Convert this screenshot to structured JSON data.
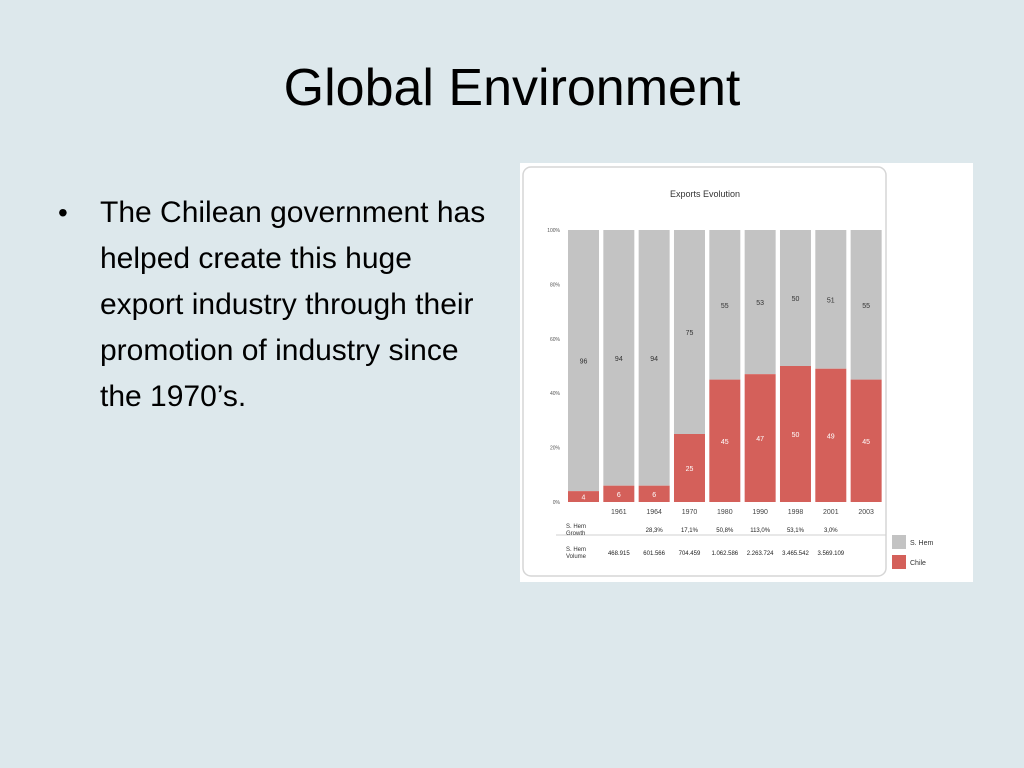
{
  "slide": {
    "title": "Global Environment",
    "bullets": [
      "The Chilean government has helped create this huge export industry through their promotion of industry since the 1970’s."
    ]
  },
  "chart_data": {
    "type": "bar",
    "stacked": true,
    "percent": true,
    "title": "Exports Evolution",
    "categories": [
      "",
      "1961",
      "1964",
      "1970",
      "1980",
      "1990",
      "1998",
      "2001",
      "2003"
    ],
    "y_ticks": [
      "100%",
      "80%",
      "60%",
      "40%",
      "20%",
      "0%"
    ],
    "ylim": [
      0,
      100
    ],
    "series": [
      {
        "name": "Chile",
        "color": "#d4605a",
        "values": [
          4,
          6,
          6,
          25,
          45,
          47,
          50,
          49,
          45
        ]
      },
      {
        "name": "S. Hem",
        "color": "#c3c3c3",
        "values": [
          96,
          94,
          94,
          75,
          55,
          53,
          50,
          51,
          55
        ]
      }
    ],
    "table": [
      {
        "label": [
          "S. Hem",
          "Growth"
        ],
        "values": [
          "",
          "",
          "28,3%",
          "17,1%",
          "50,8%",
          "113,0%",
          "53,1%",
          "3,0%",
          ""
        ]
      },
      {
        "label": [
          "S. Hem",
          "Volume"
        ],
        "values": [
          "",
          "468.915",
          "601.566",
          "704.459",
          "1.062.586",
          "2.263.724",
          "3.465.542",
          "3.569.109",
          ""
        ]
      }
    ],
    "legend": [
      {
        "name": "S. Hem",
        "color": "#c3c3c3"
      },
      {
        "name": "Chile",
        "color": "#d4605a"
      }
    ],
    "legend_position": "bottom-right",
    "grid": false
  }
}
